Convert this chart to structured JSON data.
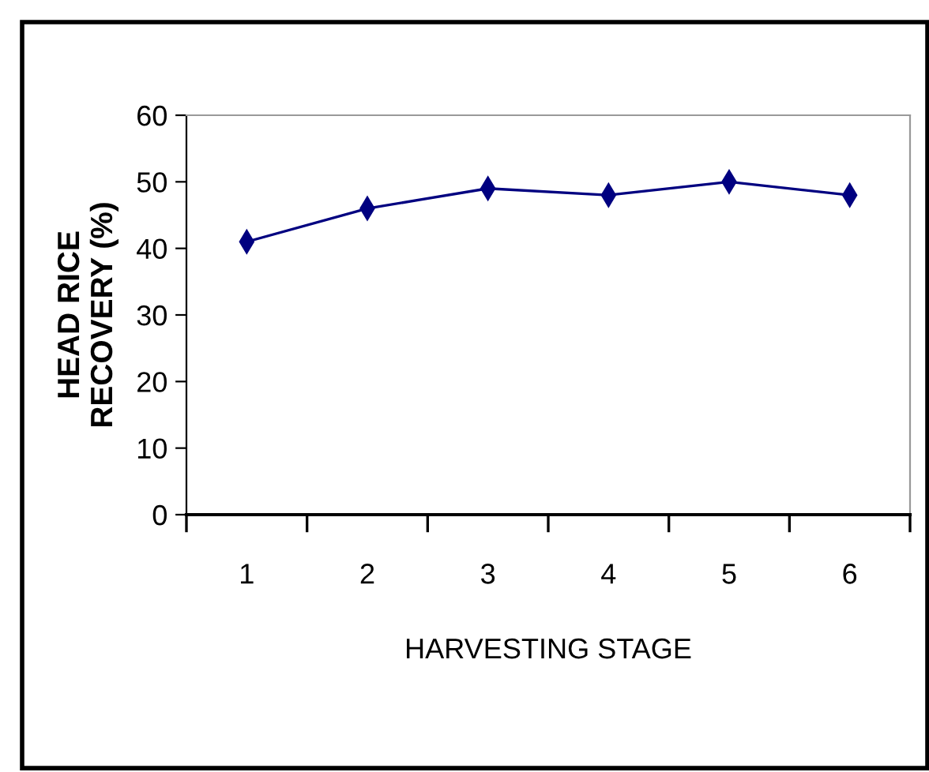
{
  "chart_data": {
    "type": "line",
    "xlabel": "HARVESTING STAGE",
    "ylabel": "HEAD RICE\nRECOVERY (%)",
    "categories": [
      "1",
      "2",
      "3",
      "4",
      "5",
      "6"
    ],
    "series": [
      {
        "color": "#000080",
        "values": [
          41,
          46,
          49,
          48,
          50,
          48
        ]
      }
    ],
    "ylim": [
      0,
      60
    ],
    "yticks": [
      0,
      10,
      20,
      30,
      40,
      50,
      60
    ],
    "grid": false,
    "legend": false,
    "marker": "diamond",
    "line_style": "solid"
  }
}
